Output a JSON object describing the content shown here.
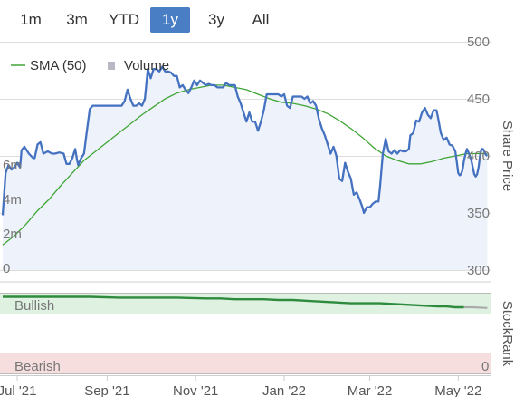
{
  "range_selector": {
    "buttons": [
      {
        "label": "1m",
        "active": false
      },
      {
        "label": "3m",
        "active": false
      },
      {
        "label": "YTD",
        "active": false
      },
      {
        "label": "1y",
        "active": true
      },
      {
        "label": "3y",
        "active": false
      },
      {
        "label": "All",
        "active": false
      }
    ]
  },
  "legend": {
    "sma_label": "SMA (50)",
    "volume_label": "Volume"
  },
  "colors": {
    "price": "#4572c0",
    "price_fill": "#eef2fb",
    "sma": "#3fa635",
    "volume": "#b9b9c4",
    "stockrank": "#2e8b3e",
    "bullish_band": "#dff1e1",
    "bearish_band": "#f7dede",
    "grid": "#dddddd"
  },
  "chart_data": [
    {
      "type": "line",
      "name": "price-chart",
      "y_axis_title": "Share Price",
      "y_ticks": [
        300,
        350,
        400,
        450,
        500
      ],
      "ylim": [
        300,
        500
      ],
      "volume_ticks": [
        "0",
        "2m",
        "4m",
        "6m"
      ],
      "volume_ylim": [
        0,
        6
      ],
      "x_ticks": [
        {
          "label": "Jul '21",
          "t": 10
        },
        {
          "label": "Sep '21",
          "t": 72
        },
        {
          "label": "Nov '21",
          "t": 133
        },
        {
          "label": "Jan '22",
          "t": 194
        },
        {
          "label": "Mar '22",
          "t": 253
        },
        {
          "label": "May '22",
          "t": 314
        }
      ],
      "x_range": [
        0,
        335
      ],
      "series": [
        {
          "name": "Price",
          "points": [
            [
              0,
              348
            ],
            [
              2,
              385
            ],
            [
              4,
              392
            ],
            [
              6,
              388
            ],
            [
              8,
              390
            ],
            [
              10,
              394
            ],
            [
              12,
              390
            ],
            [
              13,
              405
            ],
            [
              15,
              408
            ],
            [
              18,
              402
            ],
            [
              21,
              398
            ],
            [
              22,
              398
            ],
            [
              24,
              410
            ],
            [
              26,
              412
            ],
            [
              28,
              402
            ],
            [
              31,
              404
            ],
            [
              34,
              402
            ],
            [
              36,
              402
            ],
            [
              39,
              403
            ],
            [
              42,
              402
            ],
            [
              44,
              393
            ],
            [
              46,
              393
            ],
            [
              48,
              398
            ],
            [
              50,
              406
            ],
            [
              51,
              398
            ],
            [
              52,
              392
            ],
            [
              54,
              398
            ],
            [
              56,
              402
            ],
            [
              58,
              422
            ],
            [
              60,
              441
            ],
            [
              62,
              444
            ],
            [
              64,
              444
            ],
            [
              70,
              444
            ],
            [
              76,
              444
            ],
            [
              80,
              444
            ],
            [
              82,
              444
            ],
            [
              84,
              448
            ],
            [
              86,
              458
            ],
            [
              88,
              450
            ],
            [
              90,
              444
            ],
            [
              92,
              444
            ],
            [
              94,
              446
            ],
            [
              96,
              444
            ],
            [
              98,
              450
            ],
            [
              100,
              476
            ],
            [
              102,
              468
            ],
            [
              104,
              476
            ],
            [
              106,
              476
            ],
            [
              108,
              474
            ],
            [
              110,
              478
            ],
            [
              112,
              474
            ],
            [
              114,
              474
            ],
            [
              116,
              473
            ],
            [
              118,
              470
            ],
            [
              120,
              470
            ],
            [
              122,
              460
            ],
            [
              124,
              462
            ],
            [
              126,
              458
            ],
            [
              128,
              455
            ],
            [
              130,
              460
            ],
            [
              132,
              466
            ],
            [
              134,
              462
            ],
            [
              136,
              466
            ],
            [
              138,
              464
            ],
            [
              140,
              462
            ],
            [
              142,
              463
            ],
            [
              144,
              462
            ],
            [
              146,
              462
            ],
            [
              148,
              460
            ],
            [
              150,
              460
            ],
            [
              152,
              460
            ],
            [
              154,
              464
            ],
            [
              156,
              462
            ],
            [
              158,
              462
            ],
            [
              160,
              462
            ],
            [
              162,
              452
            ],
            [
              164,
              446
            ],
            [
              166,
              438
            ],
            [
              168,
              430
            ],
            [
              170,
              438
            ],
            [
              172,
              430
            ],
            [
              174,
              430
            ],
            [
              176,
              422
            ],
            [
              178,
              430
            ],
            [
              180,
              440
            ],
            [
              182,
              454
            ],
            [
              184,
              454
            ],
            [
              186,
              454
            ],
            [
              188,
              454
            ],
            [
              190,
              454
            ],
            [
              192,
              452
            ],
            [
              194,
              454
            ],
            [
              196,
              444
            ],
            [
              198,
              442
            ],
            [
              200,
              452
            ],
            [
              202,
              452
            ],
            [
              204,
              452
            ],
            [
              206,
              452
            ],
            [
              208,
              450
            ],
            [
              210,
              452
            ],
            [
              212,
              446
            ],
            [
              214,
              448
            ],
            [
              216,
              444
            ],
            [
              218,
              432
            ],
            [
              220,
              424
            ],
            [
              222,
              418
            ],
            [
              224,
              410
            ],
            [
              226,
              402
            ],
            [
              228,
              408
            ],
            [
              230,
              400
            ],
            [
              232,
              380
            ],
            [
              234,
              378
            ],
            [
              236,
              394
            ],
            [
              238,
              386
            ],
            [
              240,
              380
            ],
            [
              242,
              366
            ],
            [
              244,
              368
            ],
            [
              246,
              362
            ],
            [
              248,
              355
            ],
            [
              249,
              350
            ],
            [
              251,
              355
            ],
            [
              253,
              355
            ],
            [
              255,
              358
            ],
            [
              257,
              360
            ],
            [
              259,
              360
            ],
            [
              260,
              372
            ],
            [
              262,
              402
            ],
            [
              264,
              415
            ],
            [
              266,
              404
            ],
            [
              268,
              402
            ],
            [
              270,
              405
            ],
            [
              272,
              402
            ],
            [
              274,
              405
            ],
            [
              276,
              404
            ],
            [
              278,
              404
            ],
            [
              280,
              406
            ],
            [
              281,
              418
            ],
            [
              283,
              420
            ],
            [
              285,
              431
            ],
            [
              287,
              430
            ],
            [
              289,
              438
            ],
            [
              291,
              442
            ],
            [
              293,
              436
            ],
            [
              295,
              433
            ],
            [
              297,
              440
            ],
            [
              299,
              440
            ],
            [
              300,
              434
            ],
            [
              302,
              420
            ],
            [
              304,
              414
            ],
            [
              306,
              416
            ],
            [
              308,
              410
            ],
            [
              310,
              409
            ],
            [
              312,
              404
            ],
            [
              313,
              395
            ],
            [
              314,
              385
            ],
            [
              315,
              383
            ],
            [
              316,
              384
            ],
            [
              317,
              388
            ],
            [
              318,
              396
            ],
            [
              319,
              402
            ],
            [
              320,
              406
            ],
            [
              321,
              403
            ],
            [
              322,
              400
            ],
            [
              323,
              396
            ],
            [
              324,
              390
            ],
            [
              325,
              384
            ],
            [
              326,
              382
            ],
            [
              327,
              384
            ],
            [
              328,
              390
            ],
            [
              329,
              400
            ],
            [
              330,
              406
            ],
            [
              331,
              406
            ],
            [
              332,
              404
            ],
            [
              333,
              401
            ],
            [
              334,
              400
            ]
          ]
        },
        {
          "name": "SMA (50)",
          "points": [
            [
              0,
              322
            ],
            [
              8,
              330
            ],
            [
              16,
              340
            ],
            [
              24,
              352
            ],
            [
              32,
              362
            ],
            [
              40,
              374
            ],
            [
              48,
              385
            ],
            [
              56,
              396
            ],
            [
              64,
              404
            ],
            [
              72,
              412
            ],
            [
              80,
              420
            ],
            [
              88,
              428
            ],
            [
              96,
              436
            ],
            [
              104,
              443
            ],
            [
              112,
              450
            ],
            [
              120,
              455
            ],
            [
              128,
              458
            ],
            [
              136,
              460
            ],
            [
              144,
              462
            ],
            [
              152,
              462
            ],
            [
              160,
              460
            ],
            [
              168,
              458
            ],
            [
              176,
              454
            ],
            [
              184,
              450
            ],
            [
              192,
              447
            ],
            [
              200,
              446
            ],
            [
              208,
              444
            ],
            [
              216,
              441
            ],
            [
              224,
              437
            ],
            [
              232,
              431
            ],
            [
              240,
              424
            ],
            [
              248,
              416
            ],
            [
              256,
              407
            ],
            [
              264,
              400
            ],
            [
              272,
              396
            ],
            [
              280,
              393
            ],
            [
              288,
              393
            ],
            [
              296,
              395
            ],
            [
              304,
              398
            ],
            [
              312,
              400
            ],
            [
              320,
              402
            ],
            [
              328,
              402
            ],
            [
              334,
              402
            ]
          ]
        }
      ],
      "volume": [
        [
          50,
          0.04
        ],
        [
          58,
          0.08
        ],
        [
          66,
          0.05
        ],
        [
          72,
          0.06
        ],
        [
          82,
          5.1
        ],
        [
          84,
          0.08
        ],
        [
          96,
          0.05
        ],
        [
          110,
          0.06
        ],
        [
          120,
          0.1
        ],
        [
          134,
          0.05
        ],
        [
          148,
          0.04
        ],
        [
          170,
          0.05
        ],
        [
          200,
          0.04
        ],
        [
          230,
          0.06
        ],
        [
          262,
          0.05
        ],
        [
          276,
          0.3
        ],
        [
          286,
          0.04
        ],
        [
          300,
          0.04
        ]
      ]
    },
    {
      "type": "line",
      "name": "stockrank-chart",
      "y_axis_title": "StockRank",
      "band_labels": {
        "bullish": "Bullish",
        "bearish": "Bearish"
      },
      "y_ticks": [
        {
          "label": "0",
          "value": 0
        }
      ],
      "ylim": [
        0,
        100
      ],
      "series": [
        {
          "name": "StockRank",
          "points": [
            [
              0,
              96
            ],
            [
              30,
              96
            ],
            [
              60,
              96
            ],
            [
              80,
              95
            ],
            [
              100,
              95
            ],
            [
              120,
              95
            ],
            [
              140,
              94
            ],
            [
              150,
              94
            ],
            [
              160,
              93
            ],
            [
              170,
              93
            ],
            [
              180,
              93
            ],
            [
              190,
              92
            ],
            [
              200,
              92
            ],
            [
              210,
              91
            ],
            [
              220,
              90
            ],
            [
              230,
              89
            ],
            [
              240,
              88
            ],
            [
              250,
              88
            ],
            [
              260,
              88
            ],
            [
              270,
              87
            ],
            [
              280,
              86
            ],
            [
              290,
              85
            ],
            [
              300,
              84
            ],
            [
              306,
              84
            ],
            [
              312,
              83
            ],
            [
              318,
              83
            ],
            [
              324,
              83
            ],
            [
              334,
              82
            ]
          ]
        }
      ]
    }
  ]
}
